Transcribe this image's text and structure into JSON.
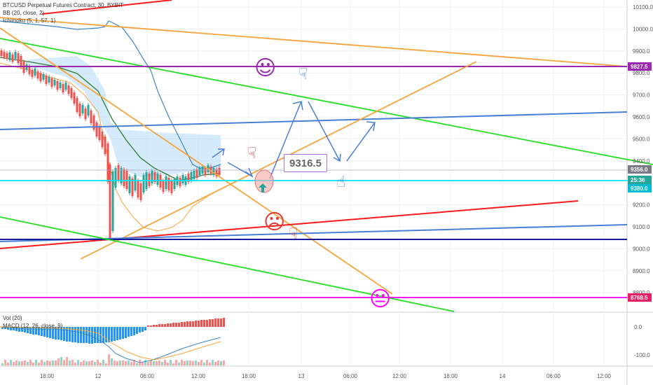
{
  "legend": {
    "symbol": "BTCUSD Perpetual Futures Contract, 30, BYBIT",
    "bb": "BB (20, close, 2)",
    "ichimoku": "Ichimoku (5, 1, 57, 1)",
    "vol": "Vol (20)",
    "macd": "MACD (12, 26, close, 9)"
  },
  "price_axis": {
    "ticks": [
      "10100.0",
      "10000.0",
      "9900.0",
      "9800.0",
      "9700.0",
      "9600.0",
      "9500.0",
      "9400.0",
      "9300.0",
      "9200.0",
      "9100.0",
      "9000.0",
      "8900.0",
      "8800.0"
    ],
    "tags": [
      {
        "label": "9827.5",
        "color": "#9c27b0"
      },
      {
        "label": "9356.0",
        "color": "#787b86"
      },
      {
        "label": "25:36",
        "color": "#26a69a"
      },
      {
        "label": "9380.0",
        "color": "#00bcd4"
      },
      {
        "label": "8768.5",
        "color": "#e91e63"
      }
    ]
  },
  "macd_axis": {
    "ticks": [
      "0.0",
      "-100.0"
    ]
  },
  "time_axis": {
    "ticks": [
      "18:00",
      "12",
      "06:00",
      "12:00",
      "18:00",
      "13",
      "06:00",
      "12:00",
      "18:00",
      "14",
      "06:00",
      "12:00"
    ]
  },
  "annotation": {
    "callout": "9316.5"
  },
  "colors": {
    "up": "#26a69a",
    "down": "#ef5350",
    "purple": "#9c27b0",
    "green": "#00e600",
    "red": "#ff0000",
    "orange": "#f7a33b",
    "blue": "#4a7fd6",
    "magenta": "#ff00ff",
    "cyan": "#00ffff",
    "navy": "#1a1a9e"
  },
  "icons": [
    "smiley-face-icon",
    "frowning-face-icon",
    "neutral-face-icon",
    "pointing-hand-icon",
    "up-arrow-icon"
  ]
}
